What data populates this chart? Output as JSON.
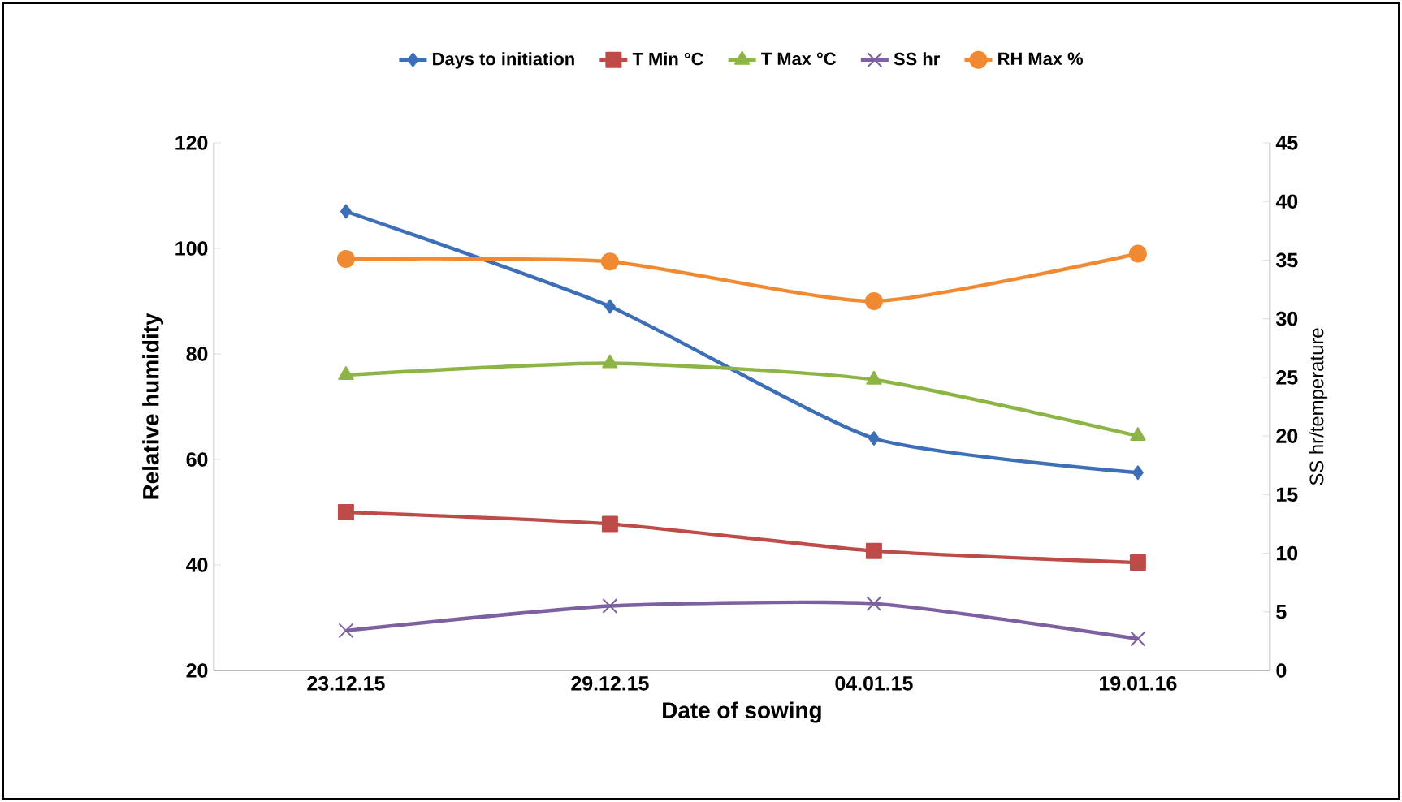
{
  "chart_data": {
    "type": "line",
    "xlabel": "Date of sowing",
    "ylabel": "Relative humidity",
    "y2label": "SS hr/temperature",
    "categories": [
      "23.12.15",
      "29.12.15",
      "04.01.15",
      "19.01.16"
    ],
    "series": [
      {
        "name": "Days to initiation",
        "color": "#3d6fb8",
        "marker": "diamond",
        "values": [
          107,
          89,
          64,
          57.5
        ]
      },
      {
        "name": "T Min °C",
        "color": "#be4b48",
        "marker": "square",
        "axis": "y2",
        "values": [
          13.5,
          12.5,
          10.2,
          9.2
        ]
      },
      {
        "name": "T Max °C",
        "color": "#8db545",
        "marker": "triangle",
        "axis": "y2",
        "values": [
          25.2,
          26.2,
          24.8,
          20.0
        ]
      },
      {
        "name": "SS hr",
        "color": "#7d60a0",
        "marker": "cross",
        "axis": "y2",
        "values": [
          3.4,
          5.5,
          5.7,
          2.7
        ]
      },
      {
        "name": "RH Max %",
        "color": "#f08a32",
        "marker": "circle",
        "values": [
          98,
          97.5,
          90,
          99
        ]
      }
    ],
    "ylim": [
      20,
      120
    ],
    "yticks": [
      20,
      40,
      60,
      80,
      100,
      120
    ],
    "y2lim": [
      0,
      45
    ],
    "y2ticks": [
      0,
      5,
      10,
      15,
      20,
      25,
      30,
      35,
      40,
      45
    ],
    "grid": false,
    "legend": "top",
    "line_style": "solid"
  }
}
